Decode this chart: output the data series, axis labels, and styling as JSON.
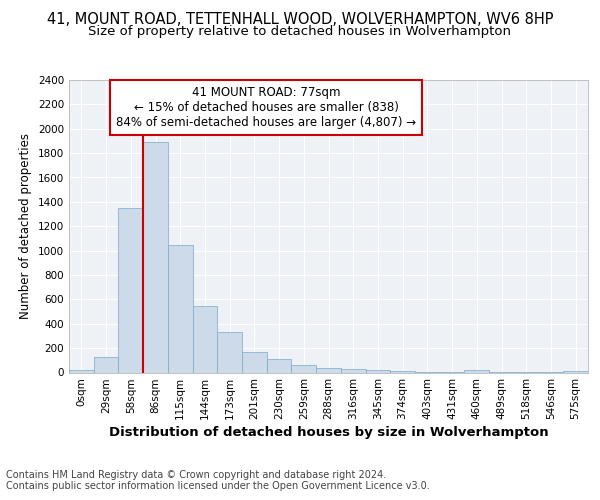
{
  "title": "41, MOUNT ROAD, TETTENHALL WOOD, WOLVERHAMPTON, WV6 8HP",
  "subtitle": "Size of property relative to detached houses in Wolverhampton",
  "xlabel": "Distribution of detached houses by size in Wolverhampton",
  "ylabel": "Number of detached properties",
  "categories": [
    "0sqm",
    "29sqm",
    "58sqm",
    "86sqm",
    "115sqm",
    "144sqm",
    "173sqm",
    "201sqm",
    "230sqm",
    "259sqm",
    "288sqm",
    "316sqm",
    "345sqm",
    "374sqm",
    "403sqm",
    "431sqm",
    "460sqm",
    "489sqm",
    "518sqm",
    "546sqm",
    "575sqm"
  ],
  "values": [
    20,
    130,
    1350,
    1890,
    1045,
    545,
    335,
    165,
    108,
    60,
    35,
    25,
    18,
    10,
    5,
    3,
    20,
    3,
    2,
    3,
    15
  ],
  "bar_color": "#ccdaea",
  "bar_edge_color": "#7aaac8",
  "vline_x_index": 2,
  "vline_color": "#cc0000",
  "annotation_text": "41 MOUNT ROAD: 77sqm\n← 15% of detached houses are smaller (838)\n84% of semi-detached houses are larger (4,807) →",
  "annotation_box_facecolor": "#ffffff",
  "annotation_box_edgecolor": "#cc0000",
  "ylim": [
    0,
    2400
  ],
  "yticks": [
    0,
    200,
    400,
    600,
    800,
    1000,
    1200,
    1400,
    1600,
    1800,
    2000,
    2200,
    2400
  ],
  "chart_bg": "#eef2f7",
  "fig_bg": "#ffffff",
  "title_fontsize": 10.5,
  "subtitle_fontsize": 9.5,
  "xlabel_fontsize": 9.5,
  "ylabel_fontsize": 8.5,
  "tick_fontsize": 7.5,
  "annot_fontsize": 8.5,
  "footer_fontsize": 7.0,
  "footer1": "Contains HM Land Registry data © Crown copyright and database right 2024.",
  "footer2": "Contains public sector information licensed under the Open Government Licence v3.0."
}
